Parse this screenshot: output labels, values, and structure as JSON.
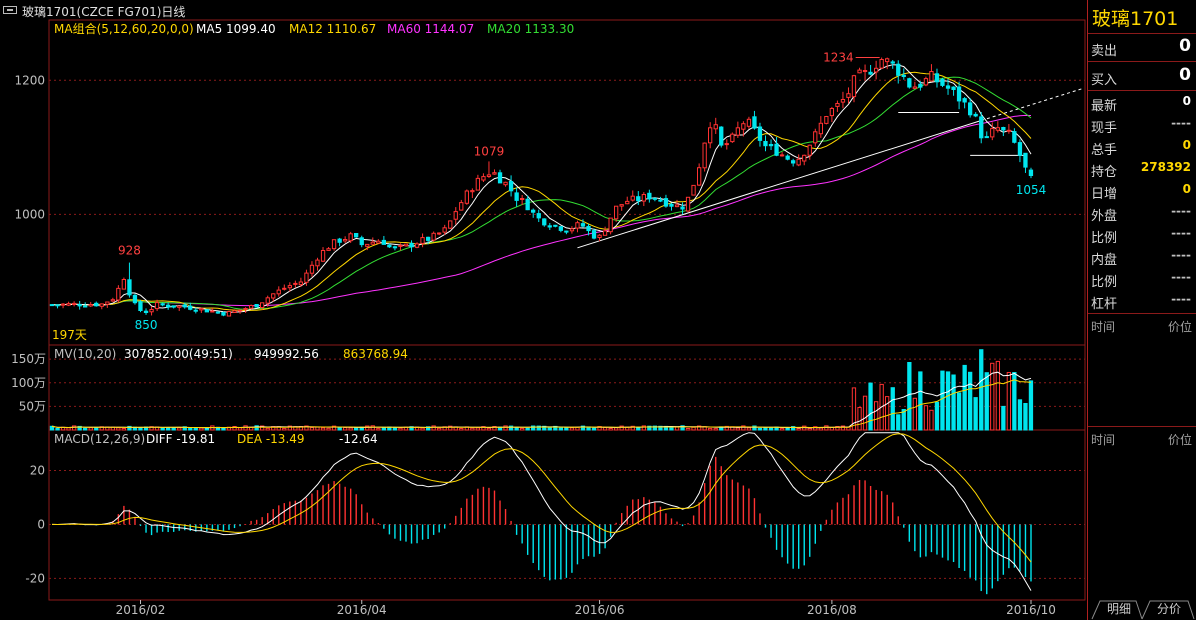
{
  "title": "玻璃1701(CZCE FG701)日线",
  "chart_data": {
    "type": "candlestick",
    "price_axis": {
      "ylim": [
        805,
        1290
      ],
      "ticks": [
        1000,
        1200
      ]
    },
    "date_ticks": [
      "2016/02",
      "2016/04",
      "2016/06",
      "2016/08",
      "2016/10"
    ],
    "annotations": {
      "high_label": "1234",
      "low_label": "850",
      "peak_label": "1079",
      "early_high_label": "928",
      "last_low_label": "1054",
      "days_label": "197天"
    },
    "ma_legend": {
      "label": "MA组合(5,12,60,20,0,0)",
      "items": [
        {
          "text": "MA5 1099.40",
          "color": "#ffffff"
        },
        {
          "text": "MA12 1110.67",
          "color": "#ffd700"
        },
        {
          "text": "MA60 1144.07",
          "color": "#ff33ff"
        },
        {
          "text": "MA20 1133.30",
          "color": "#33dd33"
        }
      ]
    },
    "volume": {
      "legend_label": "MV(10,20)",
      "legend_values": [
        "307852.00(49:51)",
        "949992.56",
        "863768.94"
      ],
      "axis_labels": [
        "150万",
        "100万",
        "50万"
      ],
      "ylim": [
        0,
        1800000
      ]
    },
    "macd": {
      "legend_label": "MACD(12,26,9)",
      "diff": "DIFF -19.81",
      "dea": "DEA -13.49",
      "macd_value": "-12.64",
      "ticks": [
        20,
        0,
        -20
      ],
      "ylim": [
        -28,
        35
      ]
    },
    "colors": {
      "up": "#ff3232",
      "down": "#00e5ee",
      "ma5": "#ffffff",
      "ma12": "#ffd700",
      "ma20": "#33dd33",
      "ma60": "#ff33ff",
      "grid": "#8b1a1a"
    }
  },
  "quote_panel": {
    "name": "玻璃1701",
    "rows": [
      {
        "label": "卖出",
        "value": "0",
        "color": "#ffffff",
        "big": true
      },
      {
        "label": "买入",
        "value": "0",
        "color": "#ffffff",
        "big": true
      },
      {
        "label": "最新",
        "value": "0",
        "color": "#ffffff"
      },
      {
        "label": "现手",
        "value": "----",
        "color": "#c0c0c0"
      },
      {
        "label": "总手",
        "value": "0",
        "color": "#ffd700"
      },
      {
        "label": "持仓",
        "value": "278392",
        "color": "#ffd700"
      },
      {
        "label": "日增",
        "value": "0",
        "color": "#ffd700"
      },
      {
        "label": "外盘",
        "value": "----",
        "color": "#c0c0c0"
      },
      {
        "label": "比例",
        "value": "----",
        "color": "#c0c0c0"
      },
      {
        "label": "内盘",
        "value": "----",
        "color": "#c0c0c0"
      },
      {
        "label": "比例",
        "value": "----",
        "color": "#c0c0c0"
      },
      {
        "label": "杠杆",
        "value": "----",
        "color": "#c0c0c0"
      }
    ],
    "time_header": "时间",
    "price_header": "价位",
    "tabs": [
      "明细",
      "分价"
    ]
  }
}
